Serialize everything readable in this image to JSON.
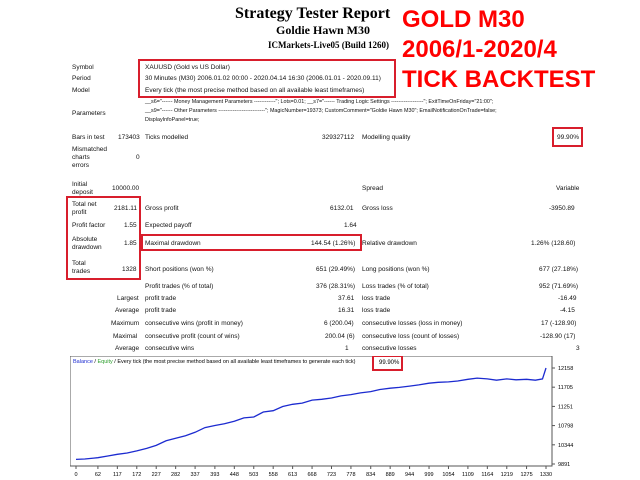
{
  "header": {
    "title": "Strategy Tester Report",
    "subtitle": "Goldie Hawn M30",
    "build": "ICMarkets-Live05 (Build 1260)"
  },
  "promo": {
    "line1": "GOLD M30",
    "line2": "2006/1-2020/4",
    "line3": "TICK BACKTEST",
    "color": "#ff0000"
  },
  "info": {
    "symbol_label": "Symbol",
    "symbol_value": "XAUUSD (Gold vs US Dollar)",
    "period_label": "Period",
    "period_value": "30 Minutes (M30) 2006.01.02 00:00 - 2020.04.14 16:30 (2006.01.01 - 2020.09.11)",
    "model_label": "Model",
    "model_value": "Every tick (the most precise method based on all available least timeframes)",
    "parameters_label": "Parameters",
    "parameters_line1": "__s6=\"------ Money Management Parameters ------------\"; Lots=0.01; __s7=\"------ Trading Logic Settings ------------------\"; ExitTimeOnFriday=\"21:00\";",
    "parameters_line2": "__s9=\"------ Other Parameters --------------------------\"; MagicNumber=19373; CustomComment=\"Goldie Hawn M30\"; EmailNotificationOnTrade=false;",
    "parameters_line3": "DisplayInfoPanel=true;"
  },
  "stats": {
    "bars_label": "Bars in test",
    "bars_value": "173403",
    "ticks_label": "Ticks modelled",
    "ticks_value": "329327112",
    "quality_label": "Modelling quality",
    "quality_value": "99.90%",
    "mismatch_label_1": "Mismatched",
    "mismatch_label_2": "charts",
    "mismatch_label_3": "errors",
    "mismatch_value": "0",
    "deposit_label_1": "Initial",
    "deposit_label_2": "deposit",
    "deposit_value": "10000.00",
    "spread_label": "Spread",
    "spread_value": "Variable",
    "net_profit_label_1": "Total net",
    "net_profit_label_2": "profit",
    "net_profit_value": "2181.11",
    "gross_profit_label": "Gross profit",
    "gross_profit_value": "6132.01",
    "gross_loss_label": "Gross loss",
    "gross_loss_value": "-3950.89",
    "profit_factor_label": "Profit factor",
    "profit_factor_value": "1.55",
    "expected_payoff_label": "Expected payoff",
    "expected_payoff_value": "1.64",
    "abs_dd_label_1": "Absolute",
    "abs_dd_label_2": "drawdown",
    "abs_dd_value": "1.85",
    "max_dd_label": "Maximal drawdown",
    "max_dd_value": "144.54 (1.26%)",
    "rel_dd_label": "Relative drawdown",
    "rel_dd_value": "1.26% (128.60)",
    "total_trades_label_1": "Total",
    "total_trades_label_2": "trades",
    "total_trades_value": "1328",
    "short_label": "Short positions (won %)",
    "short_value": "651 (29.49%)",
    "long_label": "Long positions (won %)",
    "long_value": "677 (27.18%)",
    "profit_trades_label": "Profit trades (% of total)",
    "profit_trades_value": "376 (28.31%)",
    "loss_trades_label": "Loss trades (% of total)",
    "loss_trades_value": "952 (71.69%)",
    "largest_label": "Largest",
    "largest_profit_label": "profit trade",
    "largest_profit_value": "37.61",
    "largest_loss_label": "loss trade",
    "largest_loss_value": "-16.49",
    "average_label": "Average",
    "average_profit_label": "profit trade",
    "average_profit_value": "16.31",
    "average_loss_label": "loss trade",
    "average_loss_value": "-4.15",
    "maximum_label": "Maximum",
    "max_cons_wins_label": "consecutive wins (profit in money)",
    "max_cons_wins_value": "6 (200.04)",
    "max_cons_losses_label": "consecutive losses (loss in money)",
    "max_cons_losses_value": "17 (-128.90)",
    "maximal_label": "Maximal",
    "maximal_profit_label": "consecutive profit (count of wins)",
    "maximal_profit_value": "200.04 (6)",
    "maximal_loss_label": "consecutive loss (count of losses)",
    "maximal_loss_value": "-128.90 (17)",
    "average2_label": "Average",
    "avg_cons_wins_label": "consecutive wins",
    "avg_cons_wins_value": "1",
    "avg_cons_losses_label": "consecutive losses",
    "avg_cons_losses_value": "3"
  },
  "chart_data": {
    "type": "line",
    "legend_balance": "Balance",
    "legend_sep": " / ",
    "legend_equity": "Equity",
    "legend_rest": " / Every tick (the most precise method based on all available least timeframes to generate each tick)",
    "quality_badge": "99.90%",
    "line_color": "#1c2bd0",
    "x_ticks": [
      "0",
      "62",
      "117",
      "172",
      "227",
      "282",
      "337",
      "393",
      "448",
      "503",
      "558",
      "613",
      "668",
      "723",
      "778",
      "834",
      "889",
      "944",
      "999",
      "1054",
      "1109",
      "1164",
      "1219",
      "1275",
      "1330"
    ],
    "y_ticks": [
      "12158",
      "11705",
      "11251",
      "10798",
      "10344",
      "9891"
    ],
    "ylim": [
      9891,
      12158
    ],
    "xlim": [
      0,
      1330
    ],
    "series": [
      {
        "x": [
          0,
          25,
          50,
          62,
          90,
          117,
          145,
          172,
          200,
          227,
          255,
          282,
          310,
          337,
          365,
          393,
          420,
          448,
          475,
          503,
          530,
          558,
          585,
          613,
          640,
          668,
          695,
          723,
          750,
          778,
          805,
          834,
          860,
          889,
          915,
          944,
          970,
          999,
          1025,
          1054,
          1080,
          1109,
          1135,
          1164,
          1190,
          1219,
          1245,
          1275,
          1300,
          1320,
          1330
        ],
        "y": [
          10000,
          10010,
          10030,
          10040,
          10080,
          10120,
          10150,
          10200,
          10260,
          10330,
          10440,
          10500,
          10560,
          10640,
          10750,
          10800,
          10840,
          10900,
          10980,
          11000,
          11120,
          11150,
          11250,
          11300,
          11330,
          11400,
          11420,
          11450,
          11500,
          11530,
          11570,
          11600,
          11650,
          11680,
          11700,
          11730,
          11760,
          11800,
          11820,
          11830,
          11850,
          11890,
          11920,
          11900,
          11870,
          11900,
          11880,
          11890,
          11870,
          11900,
          12158
        ]
      }
    ]
  }
}
